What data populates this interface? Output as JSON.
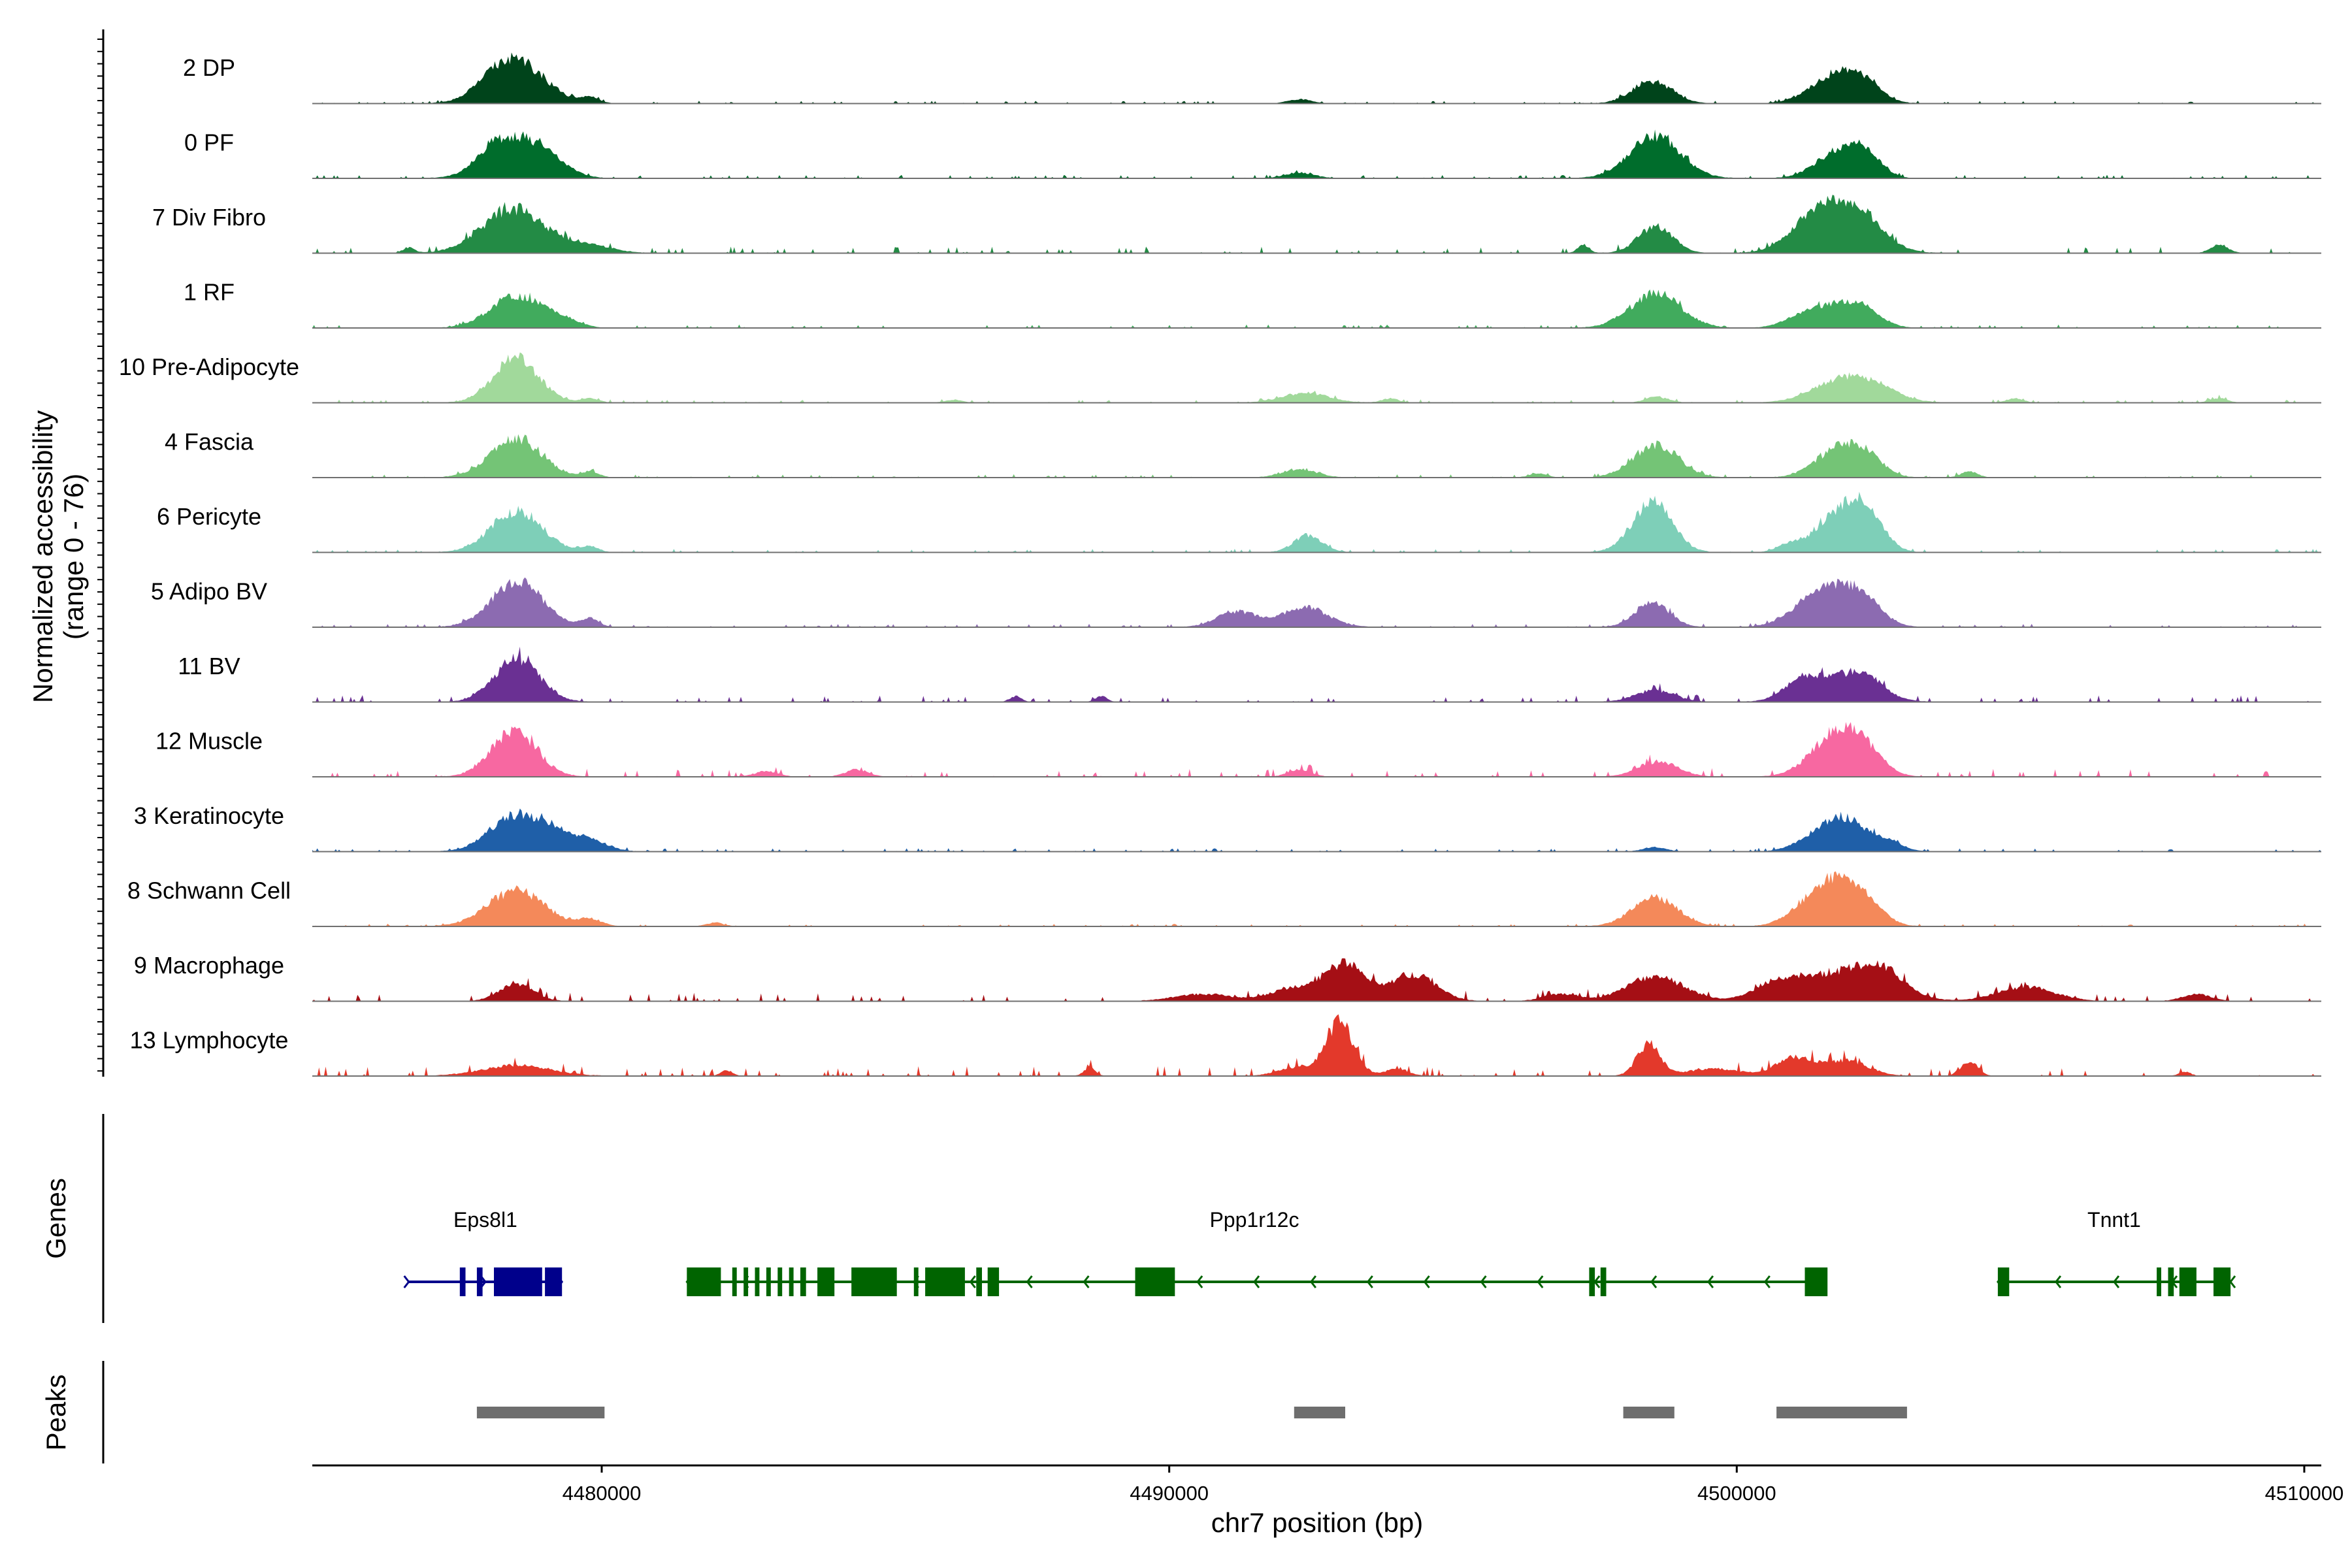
{
  "chart_data": {
    "type": "area",
    "title": "",
    "ylabel": "Normalized accessibility",
    "ylabel_range": "(range 0 - 76)",
    "ylim": [
      0,
      76
    ],
    "xlabel": "chr7 position (bp)",
    "xlim": [
      4474900,
      4510300
    ],
    "x_ticks": [
      4480000,
      4490000,
      4500000,
      4510000
    ],
    "x_tick_labels": [
      "4480000",
      "4490000",
      "4500000",
      "4510000"
    ],
    "panel_labels": {
      "genes": "Genes",
      "peaks": "Peaks"
    },
    "tracks": [
      {
        "name": "2 DP",
        "color": "#00441b",
        "peaks": [
          [
            4478490,
            60,
            500
          ],
          [
            4501790,
            40,
            450
          ],
          [
            4498510,
            32,
            350
          ],
          [
            4502220,
            18,
            300
          ],
          [
            4492300,
            6,
            200
          ],
          [
            4479800,
            8,
            150
          ],
          [
            4478000,
            10,
            250
          ]
        ],
        "noise": 1.5
      },
      {
        "name": "0 PF",
        "color": "#006d2c",
        "peaks": [
          [
            4478490,
            58,
            500
          ],
          [
            4498560,
            60,
            450
          ],
          [
            4501790,
            35,
            400
          ],
          [
            4502260,
            28,
            280
          ],
          [
            4492300,
            8,
            250
          ],
          [
            4479200,
            10,
            300
          ],
          [
            4478000,
            10,
            250
          ]
        ],
        "noise": 2
      },
      {
        "name": "7 Div Fibro",
        "color": "#238b45",
        "peaks": [
          [
            4478450,
            62,
            550
          ],
          [
            4501800,
            50,
            550
          ],
          [
            4498570,
            38,
            300
          ],
          [
            4501300,
            25,
            400
          ],
          [
            4502200,
            22,
            400
          ],
          [
            4479800,
            10,
            400
          ],
          [
            4508500,
            12,
            150
          ],
          [
            4497300,
            12,
            100
          ],
          [
            4476600,
            8,
            100
          ]
        ],
        "noise": 4
      },
      {
        "name": "1 RF",
        "color": "#41ab5d",
        "peaks": [
          [
            4478490,
            45,
            450
          ],
          [
            4498570,
            48,
            450
          ],
          [
            4501800,
            28,
            400
          ],
          [
            4501200,
            15,
            350
          ],
          [
            4502280,
            18,
            300
          ],
          [
            4479300,
            10,
            300
          ]
        ],
        "noise": 2
      },
      {
        "name": "10 Pre-Adipocyte",
        "color": "#a1d99b",
        "peaks": [
          [
            4478490,
            62,
            400
          ],
          [
            4501800,
            28,
            500
          ],
          [
            4492400,
            14,
            400
          ],
          [
            4502400,
            18,
            450
          ],
          [
            4479800,
            6,
            150
          ],
          [
            4493900,
            6,
            150
          ],
          [
            4498600,
            8,
            200
          ],
          [
            4486200,
            4,
            150
          ],
          [
            4504900,
            6,
            150
          ],
          [
            4508500,
            6,
            150
          ]
        ],
        "noise": 2
      },
      {
        "name": "4 Fascia",
        "color": "#74c476",
        "peaks": [
          [
            4478490,
            55,
            450
          ],
          [
            4498570,
            45,
            400
          ],
          [
            4501800,
            40,
            400
          ],
          [
            4502280,
            22,
            300
          ],
          [
            4492300,
            12,
            300
          ],
          [
            4496500,
            6,
            150
          ],
          [
            4504100,
            8,
            150
          ],
          [
            4479800,
            8,
            150
          ]
        ],
        "noise": 2
      },
      {
        "name": "6 Pericyte",
        "color": "#7ecfb8",
        "peaks": [
          [
            4478500,
            58,
            450
          ],
          [
            4498510,
            70,
            350
          ],
          [
            4501810,
            55,
            400
          ],
          [
            4502310,
            42,
            300
          ],
          [
            4492450,
            24,
            250
          ],
          [
            4479800,
            8,
            150
          ],
          [
            4500900,
            10,
            200
          ]
        ],
        "noise": 2
      },
      {
        "name": "5 Adipo BV",
        "color": "#8c6bb1",
        "peaks": [
          [
            4478510,
            65,
            450
          ],
          [
            4498510,
            35,
            300
          ],
          [
            4501800,
            52,
            450
          ],
          [
            4492400,
            28,
            400
          ],
          [
            4491200,
            22,
            350
          ],
          [
            4501200,
            18,
            400
          ],
          [
            4502300,
            18,
            300
          ],
          [
            4479800,
            12,
            150
          ]
        ],
        "noise": 2
      },
      {
        "name": "11 BV",
        "color": "#6a3093",
        "peaks": [
          [
            4478510,
            60,
            400
          ],
          [
            4501800,
            35,
            550
          ],
          [
            4498560,
            16,
            350
          ],
          [
            4501100,
            18,
            300
          ],
          [
            4502300,
            16,
            300
          ],
          [
            4488800,
            8,
            100
          ],
          [
            4487300,
            8,
            100
          ]
        ],
        "noise": 4
      },
      {
        "name": "12 Muscle",
        "color": "#f768a1",
        "peaks": [
          [
            4478450,
            65,
            400
          ],
          [
            4501800,
            62,
            450
          ],
          [
            4498610,
            22,
            350
          ],
          [
            4502300,
            18,
            300
          ],
          [
            4492300,
            10,
            200
          ],
          [
            4482900,
            8,
            200
          ],
          [
            4484500,
            10,
            200
          ]
        ],
        "noise": 5
      },
      {
        "name": "3 Keratinocyte",
        "color": "#1f5fa8",
        "peaks": [
          [
            4478490,
            52,
            450
          ],
          [
            4501810,
            48,
            350
          ],
          [
            4479800,
            16,
            300
          ],
          [
            4479200,
            18,
            300
          ],
          [
            4502550,
            18,
            300
          ],
          [
            4501200,
            10,
            300
          ],
          [
            4498550,
            6,
            200
          ]
        ],
        "noise": 2
      },
      {
        "name": "8 Schwann Cell",
        "color": "#f4895a",
        "peaks": [
          [
            4478490,
            50,
            500
          ],
          [
            4498560,
            40,
            400
          ],
          [
            4501800,
            62,
            400
          ],
          [
            4501200,
            20,
            350
          ],
          [
            4502350,
            18,
            300
          ],
          [
            4479800,
            10,
            200
          ],
          [
            4482000,
            5,
            150
          ]
        ],
        "noise": 1.5
      },
      {
        "name": "9 Macrophage",
        "color": "#a50f15",
        "peaks": [
          [
            4493100,
            52,
            350
          ],
          [
            4494300,
            38,
            400
          ],
          [
            4498560,
            35,
            500
          ],
          [
            4501900,
            42,
            700
          ],
          [
            4502600,
            25,
            350
          ],
          [
            4505100,
            20,
            500
          ],
          [
            4478500,
            24,
            300
          ],
          [
            4492200,
            18,
            400
          ],
          [
            4490600,
            10,
            500
          ],
          [
            4496900,
            10,
            300
          ],
          [
            4500700,
            22,
            400
          ],
          [
            4508100,
            10,
            250
          ]
        ],
        "noise": 5
      },
      {
        "name": "13 Lymphocyte",
        "color": "#e3392b",
        "peaks": [
          [
            4493000,
            75,
            250
          ],
          [
            4498450,
            45,
            200
          ],
          [
            4501000,
            25,
            300
          ],
          [
            4501900,
            22,
            400
          ],
          [
            4504100,
            20,
            150
          ],
          [
            4478500,
            15,
            600
          ],
          [
            4492200,
            12,
            300
          ],
          [
            4494000,
            10,
            200
          ],
          [
            4488600,
            12,
            100
          ],
          [
            4482200,
            8,
            100
          ],
          [
            4499600,
            10,
            500
          ],
          [
            4507900,
            6,
            100
          ]
        ],
        "noise": 6
      }
    ],
    "genes": [
      {
        "name": "Eps8l1",
        "color": "#00008b",
        "start": 4476600,
        "end": 4479300,
        "strand": "+",
        "exons": [
          [
            4477500,
            4477600
          ],
          [
            4477800,
            4477900
          ],
          [
            4478100,
            4478950
          ],
          [
            4479000,
            4479300
          ]
        ]
      },
      {
        "name": "Ppp1r12c",
        "color": "#006400",
        "start": 4481500,
        "end": 4501500,
        "strand": "-",
        "exons": [
          [
            4481500,
            4482100
          ],
          [
            4482300,
            4482380
          ],
          [
            4482500,
            4482580
          ],
          [
            4482700,
            4482780
          ],
          [
            4482900,
            4482980
          ],
          [
            4483100,
            4483180
          ],
          [
            4483300,
            4483380
          ],
          [
            4483500,
            4483600
          ],
          [
            4483800,
            4484100
          ],
          [
            4484400,
            4485200
          ],
          [
            4485500,
            4485580
          ],
          [
            4485700,
            4486400
          ],
          [
            4486600,
            4486700
          ],
          [
            4486800,
            4487000
          ],
          [
            4489400,
            4490100
          ],
          [
            4497400,
            4497500
          ],
          [
            4497600,
            4497700
          ],
          [
            4501200,
            4501600
          ]
        ]
      },
      {
        "name": "Tnnt1",
        "color": "#006400",
        "start": 4504600,
        "end": 4508700,
        "strand": "-",
        "exons": [
          [
            4504600,
            4504800
          ],
          [
            4507400,
            4507480
          ],
          [
            4507600,
            4507700
          ],
          [
            4507800,
            4508100
          ],
          [
            4508400,
            4508700
          ]
        ]
      }
    ],
    "peak_regions": [
      [
        4477800,
        4480050
      ],
      [
        4492200,
        4493100
      ],
      [
        4498000,
        4498900
      ],
      [
        4500700,
        4503000
      ]
    ]
  }
}
